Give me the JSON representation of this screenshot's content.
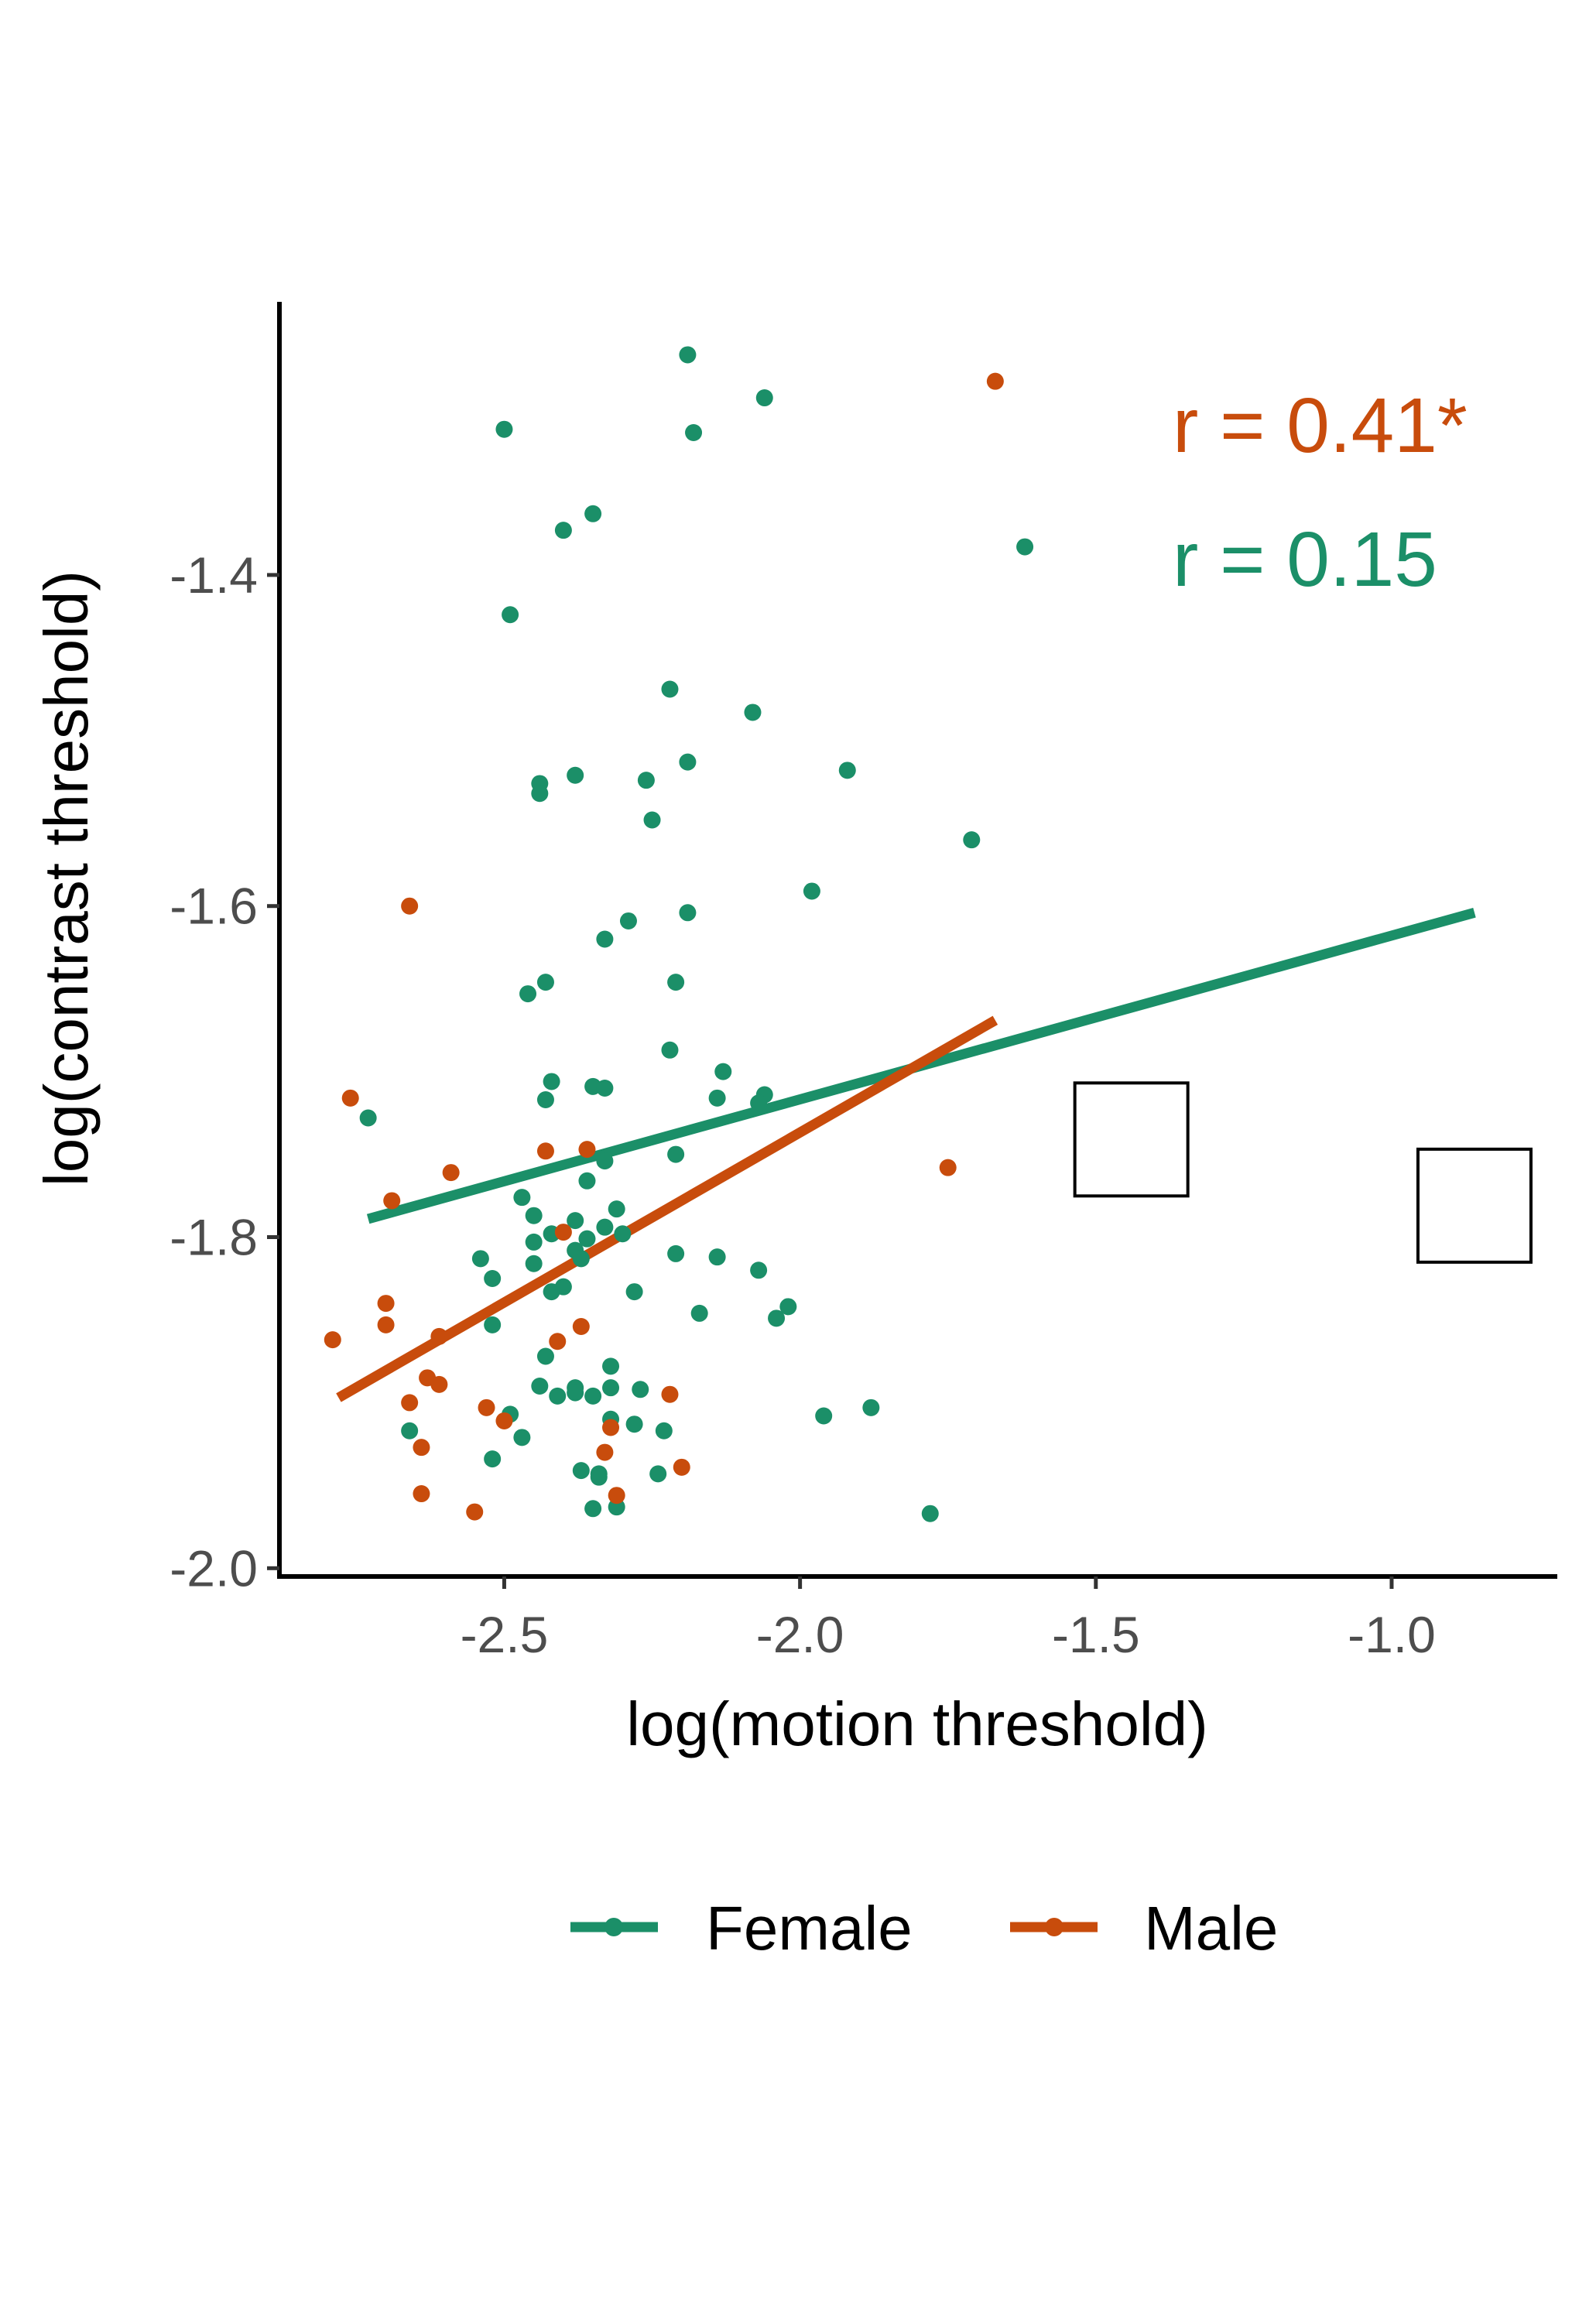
{
  "chart_data": {
    "type": "scatter",
    "xlabel": "log(motion threshold)",
    "ylabel": "log(contrast threshold)",
    "xlim": [
      -2.88,
      -0.72
    ],
    "ylim": [
      -2.005,
      -1.235
    ],
    "x_ticks": [
      {
        "value": -2.5,
        "label": "-2.5"
      },
      {
        "value": -2.0,
        "label": "-2.0"
      },
      {
        "value": -1.5,
        "label": "-1.5"
      },
      {
        "value": -1.0,
        "label": "-1.0"
      }
    ],
    "y_ticks": [
      {
        "value": -2.0,
        "label": "-2.0"
      },
      {
        "value": -1.8,
        "label": "-1.8"
      },
      {
        "value": -1.6,
        "label": "-1.6"
      },
      {
        "value": -1.4,
        "label": "-1.4"
      }
    ],
    "grid": false,
    "legend_placement": "bottom",
    "annotations": [
      {
        "text": "r = 0.41*",
        "series": "Male"
      },
      {
        "text": "r = 0.15",
        "series": "Female"
      }
    ],
    "highlighted_points": [
      {
        "x": -1.44,
        "y": -1.741
      },
      {
        "x": -0.86,
        "y": -1.781
      }
    ],
    "series": [
      {
        "name": "Female",
        "color": "#1b8f68",
        "fit": {
          "x": [
            -2.73,
            -0.86
          ],
          "y": [
            -1.789,
            -1.604
          ]
        },
        "points": [
          {
            "x": -2.19,
            "y": -1.267
          },
          {
            "x": -2.06,
            "y": -1.293
          },
          {
            "x": -2.5,
            "y": -1.312
          },
          {
            "x": -2.18,
            "y": -1.314
          },
          {
            "x": -2.35,
            "y": -1.363
          },
          {
            "x": -2.4,
            "y": -1.373
          },
          {
            "x": -1.62,
            "y": -1.383
          },
          {
            "x": -2.49,
            "y": -1.424
          },
          {
            "x": -2.22,
            "y": -1.469
          },
          {
            "x": -2.08,
            "y": -1.483
          },
          {
            "x": -2.19,
            "y": -1.513
          },
          {
            "x": -1.92,
            "y": -1.518
          },
          {
            "x": -2.38,
            "y": -1.521
          },
          {
            "x": -2.26,
            "y": -1.524
          },
          {
            "x": -2.44,
            "y": -1.526
          },
          {
            "x": -2.44,
            "y": -1.532
          },
          {
            "x": -2.25,
            "y": -1.548
          },
          {
            "x": -1.71,
            "y": -1.56
          },
          {
            "x": -1.98,
            "y": -1.591
          },
          {
            "x": -2.19,
            "y": -1.604
          },
          {
            "x": -2.29,
            "y": -1.609
          },
          {
            "x": -2.33,
            "y": -1.62
          },
          {
            "x": -2.21,
            "y": -1.646
          },
          {
            "x": -2.43,
            "y": -1.646
          },
          {
            "x": -2.46,
            "y": -1.653
          },
          {
            "x": -2.22,
            "y": -1.687
          },
          {
            "x": -2.13,
            "y": -1.7
          },
          {
            "x": -2.42,
            "y": -1.706
          },
          {
            "x": -2.35,
            "y": -1.709
          },
          {
            "x": -2.33,
            "y": -1.71
          },
          {
            "x": -2.06,
            "y": -1.714
          },
          {
            "x": -2.14,
            "y": -1.716
          },
          {
            "x": -2.43,
            "y": -1.717
          },
          {
            "x": -2.07,
            "y": -1.719
          },
          {
            "x": -2.73,
            "y": -1.728
          },
          {
            "x": -2.21,
            "y": -1.75
          },
          {
            "x": -2.33,
            "y": -1.754
          },
          {
            "x": -2.36,
            "y": -1.766
          },
          {
            "x": -2.47,
            "y": -1.776
          },
          {
            "x": -2.31,
            "y": -1.783
          },
          {
            "x": -2.45,
            "y": -1.787
          },
          {
            "x": -2.38,
            "y": -1.79
          },
          {
            "x": -2.33,
            "y": -1.794
          },
          {
            "x": -2.42,
            "y": -1.798
          },
          {
            "x": -2.3,
            "y": -1.798
          },
          {
            "x": -2.36,
            "y": -1.801
          },
          {
            "x": -2.45,
            "y": -1.803
          },
          {
            "x": -2.38,
            "y": -1.808
          },
          {
            "x": -2.21,
            "y": -1.81
          },
          {
            "x": -2.14,
            "y": -1.812
          },
          {
            "x": -2.37,
            "y": -1.813
          },
          {
            "x": -2.54,
            "y": -1.813
          },
          {
            "x": -2.45,
            "y": -1.816
          },
          {
            "x": -2.07,
            "y": -1.82
          },
          {
            "x": -2.52,
            "y": -1.825
          },
          {
            "x": -2.4,
            "y": -1.83
          },
          {
            "x": -2.42,
            "y": -1.833
          },
          {
            "x": -2.28,
            "y": -1.833
          },
          {
            "x": -2.02,
            "y": -1.842
          },
          {
            "x": -2.17,
            "y": -1.846
          },
          {
            "x": -2.04,
            "y": -1.849
          },
          {
            "x": -2.52,
            "y": -1.853
          },
          {
            "x": -2.43,
            "y": -1.872
          },
          {
            "x": -2.32,
            "y": -1.878
          },
          {
            "x": -2.44,
            "y": -1.89
          },
          {
            "x": -2.38,
            "y": -1.891
          },
          {
            "x": -2.32,
            "y": -1.891
          },
          {
            "x": -2.27,
            "y": -1.892
          },
          {
            "x": -2.38,
            "y": -1.894
          },
          {
            "x": -2.41,
            "y": -1.896
          },
          {
            "x": -2.35,
            "y": -1.896
          },
          {
            "x": -2.49,
            "y": -1.907
          },
          {
            "x": -1.88,
            "y": -1.903
          },
          {
            "x": -1.96,
            "y": -1.908
          },
          {
            "x": -2.32,
            "y": -1.91
          },
          {
            "x": -2.28,
            "y": -1.913
          },
          {
            "x": -2.23,
            "y": -1.917
          },
          {
            "x": -2.66,
            "y": -1.917
          },
          {
            "x": -2.47,
            "y": -1.921
          },
          {
            "x": -2.52,
            "y": -1.934
          },
          {
            "x": -2.37,
            "y": -1.941
          },
          {
            "x": -2.34,
            "y": -1.943
          },
          {
            "x": -2.24,
            "y": -1.943
          },
          {
            "x": -2.34,
            "y": -1.945
          },
          {
            "x": -2.35,
            "y": -1.964
          },
          {
            "x": -2.31,
            "y": -1.963
          },
          {
            "x": -1.78,
            "y": -1.967
          }
        ]
      },
      {
        "name": "Male",
        "color": "#c84c0c",
        "fit": {
          "x": [
            -2.78,
            -1.67
          ],
          "y": [
            -1.897,
            -1.669
          ]
        },
        "points": [
          {
            "x": -1.67,
            "y": -1.283
          },
          {
            "x": -2.66,
            "y": -1.6
          },
          {
            "x": -2.76,
            "y": -1.716
          },
          {
            "x": -2.43,
            "y": -1.748
          },
          {
            "x": -2.36,
            "y": -1.747
          },
          {
            "x": -1.75,
            "y": -1.758
          },
          {
            "x": -2.59,
            "y": -1.761
          },
          {
            "x": -2.69,
            "y": -1.778
          },
          {
            "x": -2.4,
            "y": -1.797
          },
          {
            "x": -2.7,
            "y": -1.84
          },
          {
            "x": -2.7,
            "y": -1.853
          },
          {
            "x": -2.37,
            "y": -1.854
          },
          {
            "x": -2.79,
            "y": -1.862
          },
          {
            "x": -2.61,
            "y": -1.86
          },
          {
            "x": -2.41,
            "y": -1.863
          },
          {
            "x": -2.63,
            "y": -1.885
          },
          {
            "x": -2.61,
            "y": -1.889
          },
          {
            "x": -2.22,
            "y": -1.895
          },
          {
            "x": -2.66,
            "y": -1.9
          },
          {
            "x": -2.53,
            "y": -1.903
          },
          {
            "x": -2.5,
            "y": -1.911
          },
          {
            "x": -2.32,
            "y": -1.915
          },
          {
            "x": -2.64,
            "y": -1.927
          },
          {
            "x": -2.33,
            "y": -1.93
          },
          {
            "x": -2.2,
            "y": -1.939
          },
          {
            "x": -2.64,
            "y": -1.955
          },
          {
            "x": -2.31,
            "y": -1.956
          },
          {
            "x": -2.55,
            "y": -1.966
          }
        ]
      }
    ]
  }
}
